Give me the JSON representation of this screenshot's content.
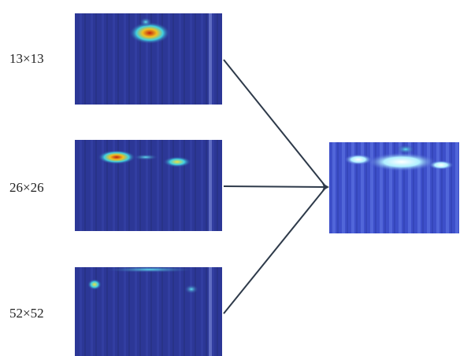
{
  "scales": [
    {
      "label": "13×13"
    },
    {
      "label": "26×26"
    },
    {
      "label": "52×52"
    }
  ]
}
